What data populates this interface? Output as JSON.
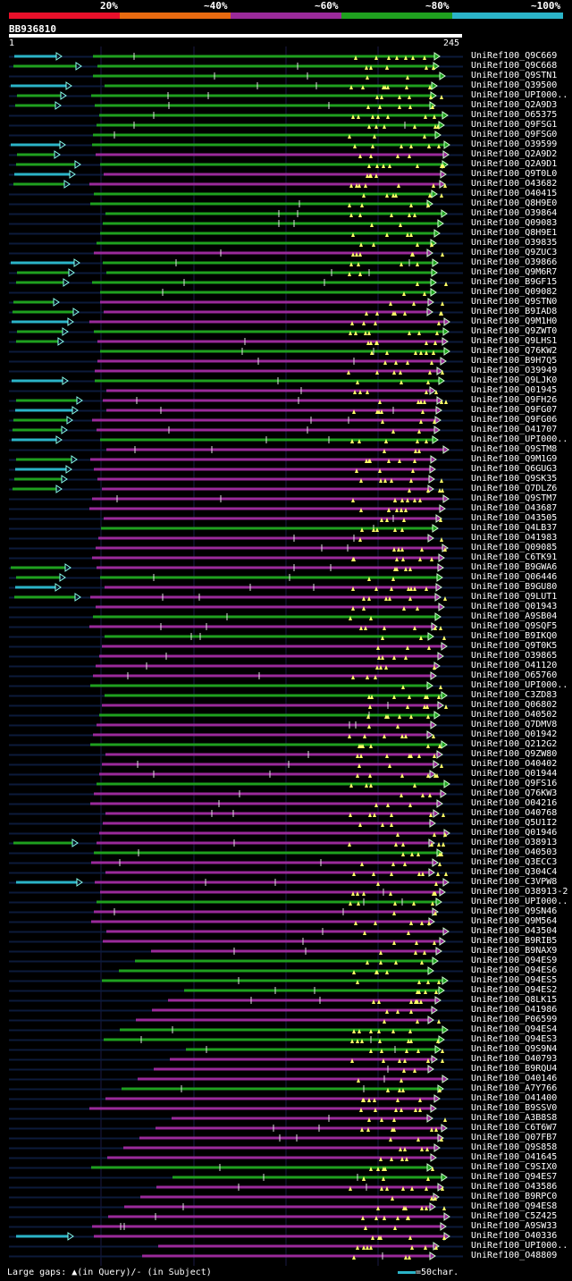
{
  "legend": {
    "labels": [
      "20%",
      "~40%",
      "~60%",
      "~80%",
      "~100%"
    ],
    "colors": [
      "#e8102a",
      "#e86a10",
      "#9a2a9a",
      "#1fa01f",
      "#2bb4c8"
    ]
  },
  "query": {
    "id": "BB936810",
    "start": "1",
    "end": "245"
  },
  "footer": {
    "gaps_text": "Large gaps: ▲(in Query)/- (in Subject)",
    "scale_text": "=50char."
  },
  "hits": [
    {
      "name": "UniRef100_Q9C669",
      "color": "green",
      "ext": true
    },
    {
      "name": "UniRef100_Q9C668",
      "color": "green",
      "ext": true
    },
    {
      "name": "UniRef100_Q9STN1",
      "color": "green",
      "ext": false
    },
    {
      "name": "UniRef100_Q39500",
      "color": "green",
      "ext": true
    },
    {
      "name": "UniRef100_UPI000..",
      "color": "green",
      "ext": true
    },
    {
      "name": "UniRef100_Q2A9D3",
      "color": "green",
      "ext": true
    },
    {
      "name": "UniRef100_O65375",
      "color": "green",
      "ext": false
    },
    {
      "name": "UniRef100_Q9FSG1",
      "color": "green",
      "ext": false
    },
    {
      "name": "UniRef100_Q9FSG0",
      "color": "green",
      "ext": false
    },
    {
      "name": "UniRef100_O39599",
      "color": "green",
      "ext": true
    },
    {
      "name": "UniRef100_Q2A9D2",
      "color": "magenta",
      "ext": true
    },
    {
      "name": "UniRef100_Q2A9D1",
      "color": "green",
      "ext": true
    },
    {
      "name": "UniRef100_Q9T0L0",
      "color": "magenta",
      "ext": true
    },
    {
      "name": "UniRef100_O43682",
      "color": "magenta",
      "ext": true
    },
    {
      "name": "UniRef100_O40415",
      "color": "green",
      "ext": false
    },
    {
      "name": "UniRef100_Q8H9E0",
      "color": "green",
      "ext": false
    },
    {
      "name": "UniRef100_O39864",
      "color": "green",
      "ext": false
    },
    {
      "name": "UniRef100_Q09083",
      "color": "green",
      "ext": false
    },
    {
      "name": "UniRef100_Q8H9E1",
      "color": "green",
      "ext": false
    },
    {
      "name": "UniRef100_O39835",
      "color": "green",
      "ext": false
    },
    {
      "name": "UniRef100_Q9ZUC3",
      "color": "magenta",
      "ext": false
    },
    {
      "name": "UniRef100_O39866",
      "color": "green",
      "ext": true
    },
    {
      "name": "UniRef100_Q9M6R7",
      "color": "green",
      "ext": true
    },
    {
      "name": "UniRef100_B9GF15",
      "color": "green",
      "ext": true
    },
    {
      "name": "UniRef100_Q09082",
      "color": "green",
      "ext": false
    },
    {
      "name": "UniRef100_Q9STN0",
      "color": "magenta",
      "ext": true
    },
    {
      "name": "UniRef100_B9IAD8",
      "color": "magenta",
      "ext": true
    },
    {
      "name": "UniRef100_Q9M1H0",
      "color": "magenta",
      "ext": true
    },
    {
      "name": "UniRef100_Q9ZWT0",
      "color": "green",
      "ext": true
    },
    {
      "name": "UniRef100_Q9LHS1",
      "color": "magenta",
      "ext": true
    },
    {
      "name": "UniRef100_Q76KW2",
      "color": "green",
      "ext": false
    },
    {
      "name": "UniRef100_B9H7Q5",
      "color": "magenta",
      "ext": false
    },
    {
      "name": "UniRef100_O39949",
      "color": "magenta",
      "ext": false
    },
    {
      "name": "UniRef100_Q9LJK0",
      "color": "green",
      "ext": true
    },
    {
      "name": "UniRef100_Q01945",
      "color": "magenta",
      "ext": false
    },
    {
      "name": "UniRef100_Q9FH26",
      "color": "magenta",
      "ext": true
    },
    {
      "name": "UniRef100_Q9FG07",
      "color": "magenta",
      "ext": true
    },
    {
      "name": "UniRef100_Q9FG06",
      "color": "magenta",
      "ext": true
    },
    {
      "name": "UniRef100_O41707",
      "color": "magenta",
      "ext": true
    },
    {
      "name": "UniRef100_UPI000..",
      "color": "green",
      "ext": true
    },
    {
      "name": "UniRef100_Q9STM8",
      "color": "magenta",
      "ext": false
    },
    {
      "name": "UniRef100_Q9M1G9",
      "color": "magenta",
      "ext": true
    },
    {
      "name": "UniRef100_Q6GUG3",
      "color": "magenta",
      "ext": true
    },
    {
      "name": "UniRef100_Q9SK35",
      "color": "magenta",
      "ext": true
    },
    {
      "name": "UniRef100_Q7DLZ6",
      "color": "magenta",
      "ext": true
    },
    {
      "name": "UniRef100_Q9STM7",
      "color": "magenta",
      "ext": false
    },
    {
      "name": "UniRef100_O43687",
      "color": "magenta",
      "ext": false
    },
    {
      "name": "UniRef100_O43505",
      "color": "magenta",
      "ext": false
    },
    {
      "name": "UniRef100_Q4LB37",
      "color": "green",
      "ext": false
    },
    {
      "name": "UniRef100_O41983",
      "color": "magenta",
      "ext": false
    },
    {
      "name": "UniRef100_Q09085",
      "color": "magenta",
      "ext": false
    },
    {
      "name": "UniRef100_C6TK91",
      "color": "magenta",
      "ext": false
    },
    {
      "name": "UniRef100_B9GWA6",
      "color": "magenta",
      "ext": true
    },
    {
      "name": "UniRef100_Q06446",
      "color": "green",
      "ext": true
    },
    {
      "name": "UniRef100_B9GU80",
      "color": "magenta",
      "ext": true
    },
    {
      "name": "UniRef100_Q9LUT1",
      "color": "magenta",
      "ext": true
    },
    {
      "name": "UniRef100_Q01943",
      "color": "magenta",
      "ext": false
    },
    {
      "name": "UniRef100_A9SB04",
      "color": "green",
      "ext": false
    },
    {
      "name": "UniRef100_Q9SQF5",
      "color": "magenta",
      "ext": false
    },
    {
      "name": "UniRef100_B9IKQ0",
      "color": "green",
      "ext": false
    },
    {
      "name": "UniRef100_Q9T0K5",
      "color": "magenta",
      "ext": false
    },
    {
      "name": "UniRef100_O39865",
      "color": "magenta",
      "ext": false
    },
    {
      "name": "UniRef100_O41120",
      "color": "magenta",
      "ext": false
    },
    {
      "name": "UniRef100_O65760",
      "color": "magenta",
      "ext": false
    },
    {
      "name": "UniRef100_UPI000..",
      "color": "green",
      "ext": false
    },
    {
      "name": "UniRef100_C3ZD83",
      "color": "green",
      "ext": false
    },
    {
      "name": "UniRef100_Q06802",
      "color": "magenta",
      "ext": false
    },
    {
      "name": "UniRef100_O40502",
      "color": "green",
      "ext": false
    },
    {
      "name": "UniRef100_Q7DMV8",
      "color": "magenta",
      "ext": false
    },
    {
      "name": "UniRef100_Q01942",
      "color": "magenta",
      "ext": false
    },
    {
      "name": "UniRef100_Q212G2",
      "color": "green",
      "ext": false
    },
    {
      "name": "UniRef100_Q9ZW80",
      "color": "magenta",
      "ext": false
    },
    {
      "name": "UniRef100_O40402",
      "color": "magenta",
      "ext": false
    },
    {
      "name": "UniRef100_Q01944",
      "color": "magenta",
      "ext": false
    },
    {
      "name": "UniRef100_Q9FS16",
      "color": "green",
      "ext": false
    },
    {
      "name": "UniRef100_Q76KW3",
      "color": "magenta",
      "ext": false
    },
    {
      "name": "UniRef100_O04216",
      "color": "magenta",
      "ext": false
    },
    {
      "name": "UniRef100_O40768",
      "color": "magenta",
      "ext": false
    },
    {
      "name": "UniRef100_Q5U1I2",
      "color": "magenta",
      "ext": false
    },
    {
      "name": "UniRef100_Q01946",
      "color": "magenta",
      "ext": false
    },
    {
      "name": "UniRef100_O38913",
      "color": "magenta",
      "ext": true
    },
    {
      "name": "UniRef100_O40503",
      "color": "green",
      "ext": false
    },
    {
      "name": "UniRef100_Q3ECC3",
      "color": "magenta",
      "ext": false
    },
    {
      "name": "UniRef100_Q304C4",
      "color": "magenta",
      "ext": false
    },
    {
      "name": "UniRef100_C3VPW8",
      "color": "magenta",
      "ext": true
    },
    {
      "name": "UniRef100_O38913-2",
      "color": "magenta",
      "ext": false
    },
    {
      "name": "UniRef100_UPI000..",
      "color": "green",
      "ext": false
    },
    {
      "name": "UniRef100_Q9SN46",
      "color": "magenta",
      "ext": false
    },
    {
      "name": "UniRef100_Q9M564",
      "color": "magenta",
      "ext": false
    },
    {
      "name": "UniRef100_O43504",
      "color": "magenta",
      "ext": false
    },
    {
      "name": "UniRef100_B9RIB5",
      "color": "magenta",
      "ext": false
    },
    {
      "name": "UniRef100_B9NAX9",
      "color": "magenta",
      "ext": false
    },
    {
      "name": "UniRef100_Q94ES9",
      "color": "green",
      "ext": false
    },
    {
      "name": "UniRef100_Q94ES6",
      "color": "green",
      "ext": false
    },
    {
      "name": "UniRef100_Q94ES5",
      "color": "green",
      "ext": false
    },
    {
      "name": "UniRef100_Q94ES2",
      "color": "green",
      "ext": false
    },
    {
      "name": "UniRef100_Q8LK15",
      "color": "magenta",
      "ext": false
    },
    {
      "name": "UniRef100_O41986",
      "color": "magenta",
      "ext": false
    },
    {
      "name": "UniRef100_P06599",
      "color": "magenta",
      "ext": false
    },
    {
      "name": "UniRef100_Q94ES4",
      "color": "green",
      "ext": false
    },
    {
      "name": "UniRef100_Q94ES3",
      "color": "green",
      "ext": false
    },
    {
      "name": "UniRef100_Q9S9N4",
      "color": "green",
      "ext": false
    },
    {
      "name": "UniRef100_O40793",
      "color": "magenta",
      "ext": false
    },
    {
      "name": "UniRef100_B9RQU4",
      "color": "magenta",
      "ext": false
    },
    {
      "name": "UniRef100_O40146",
      "color": "magenta",
      "ext": false
    },
    {
      "name": "UniRef100_A7Y766",
      "color": "green",
      "ext": false
    },
    {
      "name": "UniRef100_O41400",
      "color": "magenta",
      "ext": false
    },
    {
      "name": "UniRef100_B9SSV0",
      "color": "magenta",
      "ext": false
    },
    {
      "name": "UniRef100_A3B8S8",
      "color": "magenta",
      "ext": false
    },
    {
      "name": "UniRef100_C6T6W7",
      "color": "magenta",
      "ext": false
    },
    {
      "name": "UniRef100_Q07FB7",
      "color": "magenta",
      "ext": false
    },
    {
      "name": "UniRef100_Q9S858",
      "color": "magenta",
      "ext": false
    },
    {
      "name": "UniRef100_O41645",
      "color": "magenta",
      "ext": false
    },
    {
      "name": "UniRef100_C9SIX0",
      "color": "green",
      "ext": false
    },
    {
      "name": "UniRef100_Q94ES7",
      "color": "green",
      "ext": false
    },
    {
      "name": "UniRef100_O43586",
      "color": "magenta",
      "ext": false
    },
    {
      "name": "UniRef100_B9RPC0",
      "color": "magenta",
      "ext": false
    },
    {
      "name": "UniRef100_Q94ES8",
      "color": "magenta",
      "ext": false
    },
    {
      "name": "UniRef100_C5Z425",
      "color": "magenta",
      "ext": false
    },
    {
      "name": "UniRef100_A9SW33",
      "color": "magenta",
      "ext": false
    },
    {
      "name": "UniRef100_O40336",
      "color": "magenta",
      "ext": true
    },
    {
      "name": "UniRef100_UPI000..",
      "color": "magenta",
      "ext": false
    },
    {
      "name": "UniRef100_O48809",
      "color": "magenta",
      "ext": false
    }
  ]
}
